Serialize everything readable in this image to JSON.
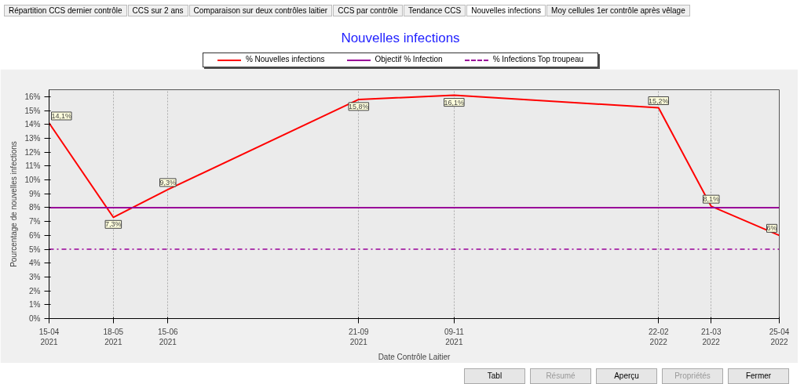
{
  "chart_data": {
    "type": "line",
    "title": "Nouvelles infections",
    "xlabel": "Date Contrôle Laitier",
    "ylabel": "Pourcentage de nouvelles infections",
    "x": [
      "2021-04-15",
      "2021-05-18",
      "2021-06-15",
      "2021-09-21",
      "2021-11-09",
      "2022-02-22",
      "2022-03-21",
      "2022-04-25"
    ],
    "series": [
      {
        "name": "% Nouvelles infections",
        "color": "#ff0000",
        "values": [
          14.1,
          7.3,
          9.3,
          15.8,
          16.1,
          15.2,
          8.1,
          6
        ],
        "value_labels": [
          "14,1%",
          "7,3%",
          "9,3%",
          "15,8%",
          "16,1%",
          "15,2%",
          "8,1%",
          "6%"
        ],
        "line_style": "solid"
      },
      {
        "name": "Objectif % Infection",
        "color": "#990099",
        "values": [
          8,
          8,
          8,
          8,
          8,
          8,
          8,
          8
        ],
        "line_style": "solid"
      },
      {
        "name": "% Infections Top troupeau",
        "color": "#990099",
        "values": [
          5,
          5,
          5,
          5,
          5,
          5,
          5,
          5
        ],
        "line_style": "dashdot"
      }
    ],
    "xlim": [
      "2021-04-15",
      "2022-04-25"
    ],
    "xticks": [
      {
        "value": "2021-04-15",
        "label": "15-04\n2021"
      },
      {
        "value": "2021-05-18",
        "label": "18-05\n2021"
      },
      {
        "value": "2021-06-15",
        "label": "15-06\n2021"
      },
      {
        "value": "2021-09-21",
        "label": "21-09\n2021"
      },
      {
        "value": "2021-11-09",
        "label": "09-11\n2021"
      },
      {
        "value": "2022-02-22",
        "label": "22-02\n2022"
      },
      {
        "value": "2022-03-21",
        "label": "21-03\n2022"
      },
      {
        "value": "2022-04-25",
        "label": "25-04\n2022"
      }
    ],
    "ylim": [
      0,
      16.5
    ],
    "yticks": [
      {
        "value": 0,
        "label": "0%"
      },
      {
        "value": 1,
        "label": "1%"
      },
      {
        "value": 2,
        "label": "2%"
      },
      {
        "value": 3,
        "label": "3%"
      },
      {
        "value": 4,
        "label": "4%"
      },
      {
        "value": 5,
        "label": "5%"
      },
      {
        "value": 6,
        "label": "6%"
      },
      {
        "value": 7,
        "label": "7%"
      },
      {
        "value": 8,
        "label": "8%"
      },
      {
        "value": 9,
        "label": "9%"
      },
      {
        "value": 10,
        "label": "10%"
      },
      {
        "value": 11,
        "label": "11%"
      },
      {
        "value": 12,
        "label": "12%"
      },
      {
        "value": 13,
        "label": "13%"
      },
      {
        "value": 14,
        "label": "14%"
      },
      {
        "value": 15,
        "label": "15%"
      },
      {
        "value": 16,
        "label": "16%"
      }
    ],
    "grid": "x",
    "legend": "top",
    "annotations": [
      "Répartition CCS dernier contrôle",
      "CCS sur 2 ans",
      "Comparaison sur deux contrôles laitier",
      "CCS par contrôle",
      "Tendance CCS",
      "Nouvelles infections",
      "Moy cellules 1er contrôle après vêlage",
      "Tabl",
      "Résumé",
      "Aperçu",
      "Propriétés",
      "Fermer"
    ]
  }
}
